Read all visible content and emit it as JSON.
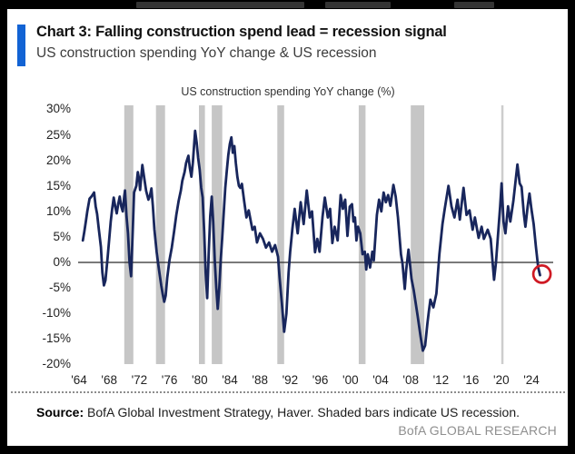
{
  "header": {
    "title": "Chart 3: Falling construction spend lead = recession signal",
    "subtitle": "US construction spending YoY change & US recession",
    "accent_color": "#1263d4"
  },
  "footer": {
    "source_label": "Source:",
    "source_text": " BofA Global Investment Strategy, Haver. Shaded bars indicate US recession.",
    "brand": "BofA GLOBAL RESEARCH"
  },
  "chart_data": {
    "type": "line",
    "title": "US construction spending YoY change (%)",
    "xlabel": "",
    "ylabel": "YoY change (%)",
    "ylim": [
      -20,
      30
    ],
    "xlim": [
      1963.8,
      2026.2
    ],
    "grid": false,
    "zero_line": true,
    "legend_position": "none",
    "line_color": "#18265c",
    "zero_line_color": "#2b2b2b",
    "recession_band_color": "#c6c6c6",
    "recession_band_light_color": "#cdcdcd",
    "annotation_color": "#cf1a24",
    "y_ticks": [
      30,
      25,
      20,
      15,
      10,
      5,
      0,
      -5,
      -10,
      -15,
      -20
    ],
    "y_tick_labels": [
      "30%",
      "25%",
      "20%",
      "15%",
      "10%",
      "5%",
      "0%",
      "-5%",
      "-10%",
      "-15%",
      "-20%"
    ],
    "x_ticks": [
      1964,
      1968,
      1972,
      1976,
      1980,
      1984,
      1988,
      1992,
      1996,
      2000,
      2004,
      2008,
      2012,
      2016,
      2020,
      2024
    ],
    "x_tick_labels": [
      "'64",
      "'68",
      "'72",
      "'76",
      "'80",
      "'84",
      "'88",
      "'92",
      "'96",
      "'00",
      "'04",
      "'08",
      "'12",
      "'16",
      "'20",
      "'24"
    ],
    "recession_bands": [
      {
        "from": 1970.0,
        "to": 1971.2,
        "light": false
      },
      {
        "from": 1974.2,
        "to": 1975.4,
        "light": false
      },
      {
        "from": 1979.9,
        "to": 1980.7,
        "light": false
      },
      {
        "from": 1981.6,
        "to": 1983.0,
        "light": false
      },
      {
        "from": 1990.3,
        "to": 1991.2,
        "light": false
      },
      {
        "from": 2001.1,
        "to": 2002.0,
        "light": false
      },
      {
        "from": 2008.0,
        "to": 2009.8,
        "light": false
      },
      {
        "from": 2020.0,
        "to": 2020.3,
        "light": true
      }
    ],
    "annotation": {
      "type": "circle",
      "x": 2025.4,
      "y": -2.3,
      "radius_px": 9.5,
      "note": "latest reading circled"
    },
    "series": [
      {
        "name": "US construction spending YoY change (%)",
        "points": [
          [
            1964.5,
            4.3
          ],
          [
            1964.7,
            6
          ],
          [
            1964.9,
            8
          ],
          [
            1965.1,
            10
          ],
          [
            1965.4,
            12.5
          ],
          [
            1965.7,
            13
          ],
          [
            1966.0,
            13.7
          ],
          [
            1966.2,
            11
          ],
          [
            1966.4,
            9.5
          ],
          [
            1966.6,
            6.8
          ],
          [
            1966.9,
            3
          ],
          [
            1967.1,
            -2
          ],
          [
            1967.3,
            -4.5
          ],
          [
            1967.5,
            -3.5
          ],
          [
            1967.8,
            1
          ],
          [
            1968.0,
            4.5
          ],
          [
            1968.2,
            8
          ],
          [
            1968.4,
            10.5
          ],
          [
            1968.6,
            12.7
          ],
          [
            1968.8,
            11
          ],
          [
            1969.0,
            9.6
          ],
          [
            1969.2,
            11.5
          ],
          [
            1969.4,
            12.9
          ],
          [
            1969.6,
            11
          ],
          [
            1969.8,
            10
          ],
          [
            1970.0,
            13
          ],
          [
            1970.1,
            14.1
          ],
          [
            1970.3,
            9
          ],
          [
            1970.5,
            5.7
          ],
          [
            1970.7,
            0
          ],
          [
            1970.9,
            -2.7
          ],
          [
            1971.1,
            5
          ],
          [
            1971.3,
            13.7
          ],
          [
            1971.6,
            15
          ],
          [
            1971.8,
            17.7
          ],
          [
            1972.0,
            16
          ],
          [
            1972.1,
            14.2
          ],
          [
            1972.4,
            19.1
          ],
          [
            1972.6,
            17
          ],
          [
            1972.9,
            14
          ],
          [
            1973.2,
            12.3
          ],
          [
            1973.4,
            13
          ],
          [
            1973.6,
            14.5
          ],
          [
            1973.8,
            11
          ],
          [
            1974.0,
            6.4
          ],
          [
            1974.3,
            2
          ],
          [
            1974.6,
            -1.4
          ],
          [
            1974.9,
            -4.5
          ],
          [
            1975.1,
            -6.2
          ],
          [
            1975.3,
            -7.7
          ],
          [
            1975.5,
            -6.5
          ],
          [
            1975.7,
            -3
          ],
          [
            1976.0,
            0.5
          ],
          [
            1976.3,
            2.9
          ],
          [
            1976.6,
            6
          ],
          [
            1976.9,
            9.3
          ],
          [
            1977.2,
            12
          ],
          [
            1977.5,
            14.1
          ],
          [
            1977.7,
            16
          ],
          [
            1978.0,
            17.7
          ],
          [
            1978.2,
            19.5
          ],
          [
            1978.5,
            20.9
          ],
          [
            1978.7,
            18.5
          ],
          [
            1978.9,
            16.8
          ],
          [
            1979.1,
            19.5
          ],
          [
            1979.4,
            25.8
          ],
          [
            1979.6,
            23.5
          ],
          [
            1979.8,
            20.5
          ],
          [
            1980.0,
            18.2
          ],
          [
            1980.2,
            14.6
          ],
          [
            1980.4,
            12.7
          ],
          [
            1980.6,
            6
          ],
          [
            1980.8,
            -2
          ],
          [
            1981.0,
            -7
          ],
          [
            1981.2,
            2
          ],
          [
            1981.4,
            9
          ],
          [
            1981.6,
            12.9
          ],
          [
            1981.8,
            8
          ],
          [
            1982.0,
            0.5
          ],
          [
            1982.2,
            -5
          ],
          [
            1982.4,
            -9.1
          ],
          [
            1982.6,
            -5
          ],
          [
            1982.8,
            0.5
          ],
          [
            1983.0,
            5
          ],
          [
            1983.2,
            10
          ],
          [
            1983.4,
            14.6
          ],
          [
            1983.6,
            18
          ],
          [
            1983.8,
            21
          ],
          [
            1984.0,
            23.2
          ],
          [
            1984.2,
            24.5
          ],
          [
            1984.4,
            21.5
          ],
          [
            1984.6,
            22.8
          ],
          [
            1984.8,
            19.5
          ],
          [
            1985.0,
            16.8
          ],
          [
            1985.2,
            15
          ],
          [
            1985.4,
            14.6
          ],
          [
            1985.6,
            15.4
          ],
          [
            1985.9,
            12
          ],
          [
            1986.2,
            8.8
          ],
          [
            1986.5,
            10.2
          ],
          [
            1987.0,
            6.4
          ],
          [
            1987.3,
            7
          ],
          [
            1987.6,
            3.9
          ],
          [
            1988.0,
            5.7
          ],
          [
            1988.4,
            4.6
          ],
          [
            1988.8,
            2.9
          ],
          [
            1989.2,
            3.9
          ],
          [
            1989.6,
            2.1
          ],
          [
            1990.0,
            3.4
          ],
          [
            1990.4,
            1.1
          ],
          [
            1990.6,
            -3
          ],
          [
            1990.9,
            -8
          ],
          [
            1991.2,
            -13.6
          ],
          [
            1991.5,
            -10
          ],
          [
            1991.8,
            -2
          ],
          [
            1992.0,
            2
          ],
          [
            1992.3,
            6.6
          ],
          [
            1992.6,
            10.5
          ],
          [
            1993.0,
            5.7
          ],
          [
            1993.4,
            11.8
          ],
          [
            1993.8,
            7.5
          ],
          [
            1994.2,
            14.1
          ],
          [
            1994.6,
            8.8
          ],
          [
            1994.9,
            10
          ],
          [
            1995.3,
            2
          ],
          [
            1995.6,
            4.6
          ],
          [
            1995.9,
            2.1
          ],
          [
            1996.3,
            9
          ],
          [
            1996.6,
            12.7
          ],
          [
            1997.0,
            8.8
          ],
          [
            1997.3,
            10.5
          ],
          [
            1997.6,
            3.8
          ],
          [
            1997.9,
            7
          ],
          [
            1998.3,
            4.3
          ],
          [
            1998.7,
            13.2
          ],
          [
            1999.0,
            10.5
          ],
          [
            1999.3,
            12.3
          ],
          [
            1999.6,
            5.2
          ],
          [
            1999.9,
            10.9
          ],
          [
            2000.2,
            11.4
          ],
          [
            2000.4,
            8
          ],
          [
            2000.6,
            8.8
          ],
          [
            2000.8,
            4.3
          ],
          [
            2001.0,
            7
          ],
          [
            2001.3,
            5.7
          ],
          [
            2001.6,
            1.6
          ],
          [
            2001.9,
            2.1
          ],
          [
            2002.1,
            -1.4
          ],
          [
            2002.3,
            1.6
          ],
          [
            2002.6,
            -1
          ],
          [
            2002.9,
            2.1
          ],
          [
            2003.1,
            0.4
          ],
          [
            2003.5,
            9.3
          ],
          [
            2003.8,
            12.3
          ],
          [
            2004.1,
            10
          ],
          [
            2004.4,
            13.7
          ],
          [
            2004.7,
            11.8
          ],
          [
            2005.0,
            13.2
          ],
          [
            2005.3,
            11.1
          ],
          [
            2005.7,
            15.2
          ],
          [
            2006.0,
            12.9
          ],
          [
            2006.3,
            8.8
          ],
          [
            2006.7,
            1.6
          ],
          [
            2006.9,
            -0.2
          ],
          [
            2007.2,
            -5.2
          ],
          [
            2007.4,
            -1.4
          ],
          [
            2007.7,
            2.5
          ],
          [
            2008.1,
            -3.2
          ],
          [
            2008.4,
            -5.5
          ],
          [
            2008.9,
            -10.4
          ],
          [
            2009.3,
            -14.5
          ],
          [
            2009.6,
            -17.3
          ],
          [
            2009.9,
            -16.3
          ],
          [
            2010.2,
            -12
          ],
          [
            2010.4,
            -9.6
          ],
          [
            2010.6,
            -7.3
          ],
          [
            2011.0,
            -8.8
          ],
          [
            2011.4,
            -6.1
          ],
          [
            2011.8,
            1.6
          ],
          [
            2012.2,
            7.5
          ],
          [
            2012.5,
            10.5
          ],
          [
            2013.0,
            15
          ],
          [
            2013.4,
            11
          ],
          [
            2013.8,
            8.8
          ],
          [
            2014.2,
            12.3
          ],
          [
            2014.5,
            8.4
          ],
          [
            2015.0,
            14.6
          ],
          [
            2015.4,
            9.3
          ],
          [
            2015.8,
            10.2
          ],
          [
            2016.2,
            6.4
          ],
          [
            2016.5,
            8.8
          ],
          [
            2017.0,
            4.8
          ],
          [
            2017.4,
            7
          ],
          [
            2017.7,
            4.6
          ],
          [
            2018.2,
            6.4
          ],
          [
            2018.6,
            4.6
          ],
          [
            2018.85,
            0
          ],
          [
            2019.05,
            -3.4
          ],
          [
            2019.3,
            0
          ],
          [
            2019.6,
            6
          ],
          [
            2019.85,
            11
          ],
          [
            2020.05,
            15.5
          ],
          [
            2020.3,
            8
          ],
          [
            2020.55,
            5.7
          ],
          [
            2020.9,
            11
          ],
          [
            2021.2,
            8
          ],
          [
            2021.6,
            12
          ],
          [
            2021.9,
            16
          ],
          [
            2022.15,
            19.2
          ],
          [
            2022.45,
            15.5
          ],
          [
            2022.7,
            14.8
          ],
          [
            2023.0,
            9.5
          ],
          [
            2023.2,
            7
          ],
          [
            2023.5,
            11
          ],
          [
            2023.75,
            13.5
          ],
          [
            2024.0,
            10.5
          ],
          [
            2024.3,
            7.5
          ],
          [
            2024.6,
            3
          ],
          [
            2024.9,
            -1
          ],
          [
            2025.15,
            -2.5
          ]
        ]
      }
    ]
  }
}
